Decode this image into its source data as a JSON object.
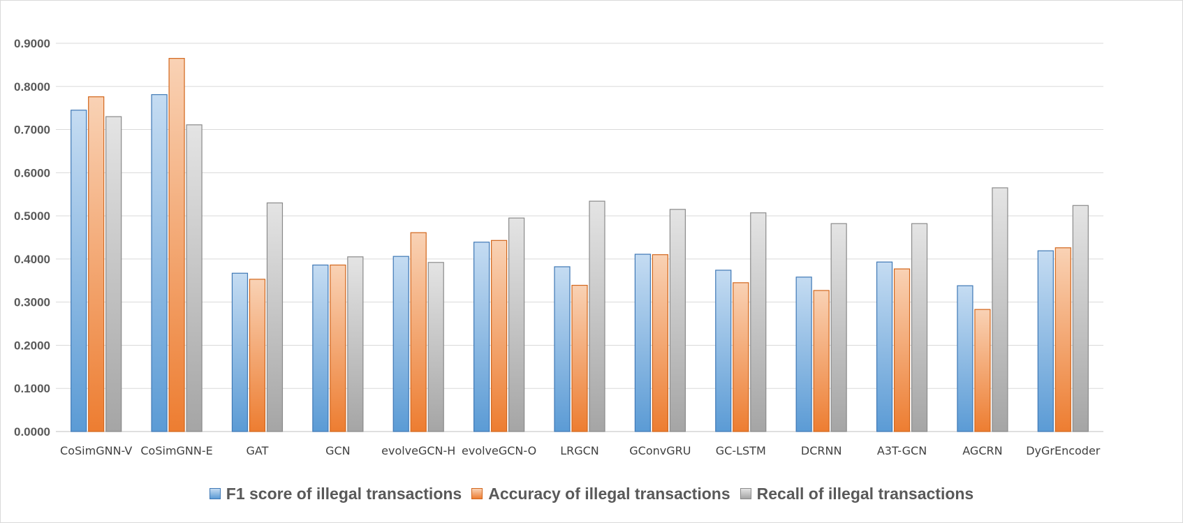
{
  "chart_data": {
    "type": "bar",
    "title": "",
    "xlabel": "",
    "ylabel": "",
    "ylim": [
      0,
      0.9
    ],
    "yticks": [
      "0.0000",
      "0.1000",
      "0.2000",
      "0.3000",
      "0.4000",
      "0.5000",
      "0.6000",
      "0.7000",
      "0.8000",
      "0.9000"
    ],
    "grid": true,
    "legend_position": "bottom",
    "categories": [
      "CoSimGNN-V",
      "CoSimGNN-E",
      "GAT",
      "GCN",
      "evolveGCN-H",
      "evolveGCN-O",
      "LRGCN",
      "GConvGRU",
      "GC-LSTM",
      "DCRNN",
      "A3T-GCN",
      "AGCRN",
      "DyGrEncoder"
    ],
    "series": [
      {
        "name": "F1 score of illegal transactions",
        "color": "#5b9bd5",
        "values": [
          0.745,
          0.781,
          0.367,
          0.386,
          0.406,
          0.439,
          0.382,
          0.411,
          0.374,
          0.358,
          0.393,
          0.338,
          0.419
        ]
      },
      {
        "name": "Accuracy of illegal transactions",
        "color": "#ed7d31",
        "values": [
          0.776,
          0.865,
          0.353,
          0.386,
          0.461,
          0.443,
          0.339,
          0.41,
          0.345,
          0.327,
          0.377,
          0.283,
          0.426
        ]
      },
      {
        "name": "Recall of illegal transactions",
        "color": "#a5a5a5",
        "values": [
          0.73,
          0.711,
          0.53,
          0.405,
          0.392,
          0.495,
          0.534,
          0.515,
          0.507,
          0.482,
          0.482,
          0.565,
          0.524
        ]
      }
    ]
  }
}
